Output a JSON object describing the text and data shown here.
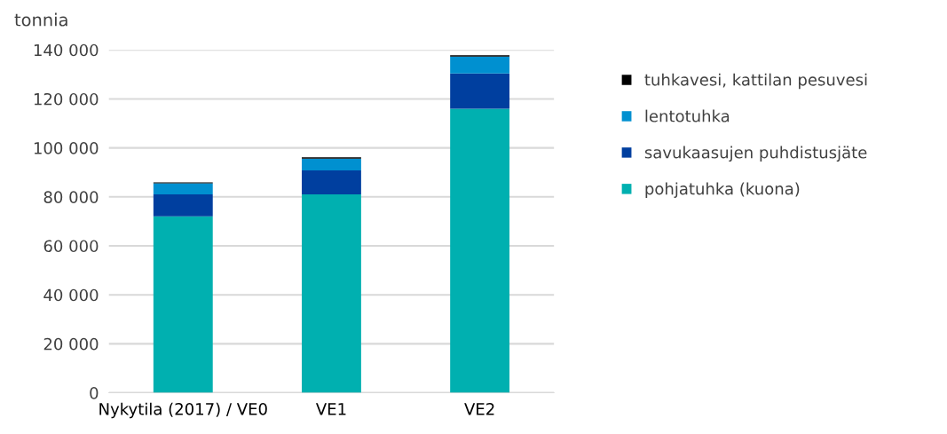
{
  "chart_data": {
    "type": "bar",
    "stacked": true,
    "ylabel": "tonnia",
    "categories": [
      "Nykytila (2017) / VE0",
      "VE1",
      "VE2"
    ],
    "series": [
      {
        "name": "pohjatuhka (kuona)",
        "color": "#00b0b0",
        "values": [
          72000,
          81000,
          116000
        ]
      },
      {
        "name": "savukaasujen puhdistusjäte",
        "color": "#003f9f",
        "values": [
          9000,
          9800,
          14400
        ]
      },
      {
        "name": "lentotuhka",
        "color": "#0090d0",
        "values": [
          4500,
          4800,
          6900
        ]
      },
      {
        "name": "tuhkavesi, kattilan pesuvesi",
        "color": "#000000",
        "values": [
          400,
          500,
          500
        ]
      }
    ],
    "ylim": [
      0,
      140000
    ],
    "yticks": [
      {
        "value": 0,
        "label": "0"
      },
      {
        "value": 20000,
        "label": "20 000"
      },
      {
        "value": 40000,
        "label": "40 000"
      },
      {
        "value": 60000,
        "label": "60 000"
      },
      {
        "value": 80000,
        "label": "80 000"
      },
      {
        "value": 100000,
        "label": "100 000"
      },
      {
        "value": 120000,
        "label": "120 000"
      },
      {
        "value": 140000,
        "label": "140 000"
      }
    ],
    "grid": "y",
    "legend": "right"
  }
}
